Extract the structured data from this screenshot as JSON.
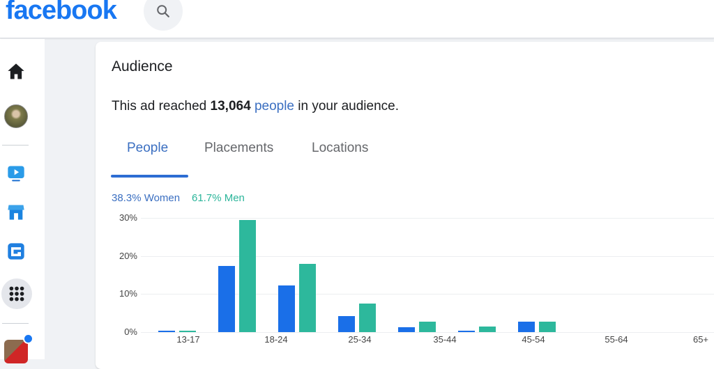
{
  "header": {
    "logo": "facebook",
    "search_icon": "search-icon"
  },
  "sidebar": {
    "items": [
      {
        "name": "home",
        "icon": "home-icon"
      },
      {
        "name": "profile",
        "icon": "avatar"
      },
      {
        "name": "watch",
        "icon": "video-icon"
      },
      {
        "name": "marketplace",
        "icon": "store-icon"
      },
      {
        "name": "gaming",
        "icon": "gaming-icon"
      },
      {
        "name": "menu",
        "icon": "grid-icon"
      },
      {
        "name": "page",
        "icon": "page-thumbnail"
      }
    ]
  },
  "audience": {
    "title": "Audience",
    "reach_prefix": "This ad reached ",
    "reach_count": "13,064",
    "reach_link": "people",
    "reach_suffix": " in your audience."
  },
  "tabs": [
    {
      "label": "People",
      "active": true
    },
    {
      "label": "Placements",
      "active": false
    },
    {
      "label": "Locations",
      "active": false
    }
  ],
  "gender_split": {
    "women": "38.3% Women",
    "men": "61.7% Men",
    "women_color": "#3b6fc1",
    "men_color": "#2bb59a"
  },
  "colors": {
    "brand": "#1877f2",
    "women_bar": "#1a6fe8",
    "men_bar": "#2db89c"
  },
  "chart_data": {
    "type": "bar",
    "title": "",
    "categories": [
      "13-17",
      "18-24",
      "25-34",
      "35-44",
      "45-54",
      "55-64",
      "65+"
    ],
    "series": [
      {
        "name": "Women",
        "values": [
          0.3,
          17.4,
          12.2,
          4.2,
          1.3,
          0.4,
          2.7
        ]
      },
      {
        "name": "Men",
        "values": [
          0.3,
          29.4,
          17.9,
          7.5,
          2.7,
          1.5,
          2.7
        ]
      }
    ],
    "ylim": [
      0,
      30
    ],
    "yticks": [
      "0%",
      "10%",
      "20%",
      "30%"
    ],
    "xlabel": "",
    "ylabel": "",
    "grid": true,
    "legend": "top-left text (38.3% Women, 61.7% Men)"
  }
}
